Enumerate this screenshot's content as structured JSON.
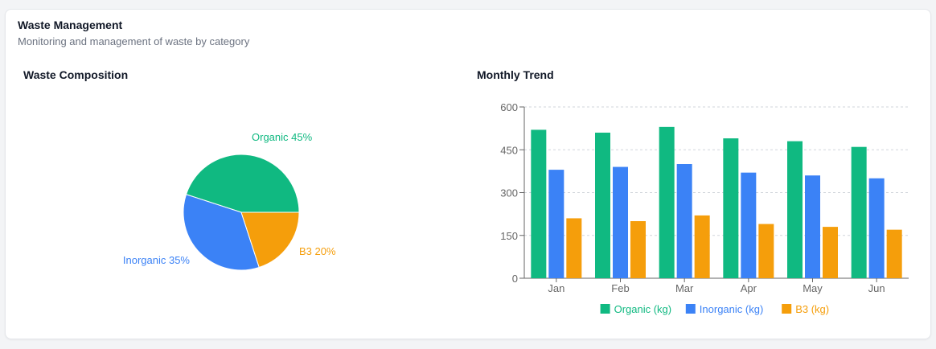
{
  "header": {
    "title": "Waste Management",
    "subtitle": "Monitoring and management of waste by category"
  },
  "composition": {
    "title": "Waste Composition"
  },
  "trend": {
    "title": "Monthly Trend"
  },
  "colors": {
    "organic": "#10b981",
    "inorganic": "#3b82f6",
    "b3": "#f59e0b"
  },
  "chart_data": [
    {
      "type": "pie",
      "title": "Waste Composition",
      "slices": [
        {
          "label": "Organic",
          "value": 45,
          "display": "Organic 45%"
        },
        {
          "label": "Inorganic",
          "value": 35,
          "display": "Inorganic 35%"
        },
        {
          "label": "B3",
          "value": 20,
          "display": "B3 20%"
        }
      ]
    },
    {
      "type": "bar",
      "title": "Monthly Trend",
      "categories": [
        "Jan",
        "Feb",
        "Mar",
        "Apr",
        "May",
        "Jun"
      ],
      "series": [
        {
          "name": "Organic (kg)",
          "values": [
            520,
            510,
            530,
            490,
            480,
            460
          ]
        },
        {
          "name": "Inorganic (kg)",
          "values": [
            380,
            390,
            400,
            370,
            360,
            350
          ]
        },
        {
          "name": "B3 (kg)",
          "values": [
            210,
            200,
            220,
            190,
            180,
            170
          ]
        }
      ],
      "ylim": [
        0,
        600
      ],
      "yticks": [
        "0",
        "150",
        "300",
        "450",
        "600"
      ],
      "grid": true,
      "legend": "bottom"
    }
  ]
}
